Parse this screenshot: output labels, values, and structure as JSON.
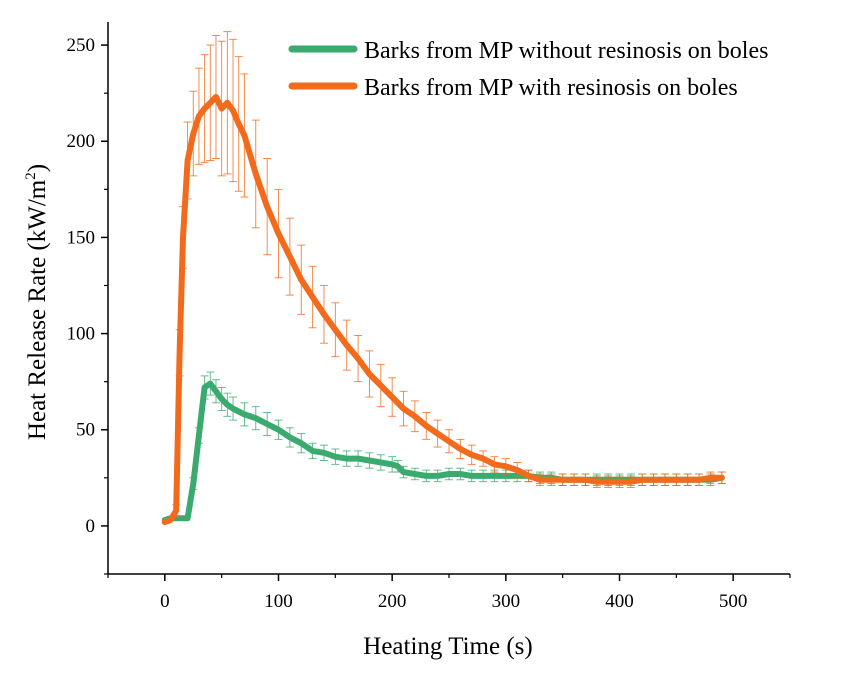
{
  "chart_data": {
    "type": "line",
    "title": "",
    "xlabel": "Heating Time (s)",
    "ylabel_main": "Heat Release Rate (kW/m",
    "ylabel_sup": "2",
    "ylabel_close": ")",
    "xlim": [
      -50,
      550
    ],
    "ylim": [
      -25,
      262
    ],
    "xticks": [
      0,
      100,
      200,
      300,
      400,
      500
    ],
    "xtick_labels": [
      "0",
      "100",
      "200",
      "300",
      "400",
      "500"
    ],
    "yticks": [
      0,
      50,
      100,
      150,
      200,
      250
    ],
    "ytick_labels": [
      "0",
      "50",
      "100",
      "150",
      "200",
      "250"
    ],
    "legend_position": "top-right",
    "series": [
      {
        "name": "Barks from MP without resinosis on boles",
        "color": "#3aaa6e",
        "x": [
          0,
          5,
          10,
          15,
          20,
          25,
          30,
          35,
          40,
          45,
          50,
          55,
          60,
          70,
          80,
          90,
          100,
          110,
          120,
          130,
          140,
          150,
          160,
          170,
          180,
          190,
          200,
          205,
          210,
          220,
          230,
          240,
          250,
          260,
          270,
          280,
          290,
          300,
          310,
          320,
          330,
          340,
          350,
          360,
          370,
          380,
          390,
          400,
          410,
          420,
          430,
          440,
          450,
          460,
          470,
          480,
          490
        ],
        "y": [
          3,
          4,
          4,
          4,
          4,
          22,
          47,
          72,
          74,
          70,
          66,
          63,
          61,
          58,
          56,
          53,
          50,
          46,
          43,
          39,
          38,
          36,
          35,
          35,
          34,
          33,
          32,
          31,
          28,
          27,
          26,
          26,
          27,
          27,
          26,
          26,
          26,
          26,
          26,
          26,
          25,
          25,
          24,
          24,
          24,
          24,
          24,
          24,
          24,
          24,
          24,
          24,
          24,
          24,
          24,
          24,
          25
        ],
        "err": [
          1,
          1,
          1,
          1,
          1,
          3,
          4,
          6,
          6,
          6,
          6,
          6,
          6,
          6,
          6,
          6,
          5,
          5,
          5,
          4,
          4,
          4,
          4,
          4,
          4,
          4,
          4,
          3,
          3,
          3,
          3,
          3,
          3,
          3,
          3,
          3,
          3,
          3,
          3,
          3,
          3,
          3,
          3,
          3,
          3,
          3,
          3,
          3,
          3,
          3,
          3,
          3,
          3,
          3,
          3,
          3,
          3
        ]
      },
      {
        "name": "Barks from MP with resinosis on boles",
        "color": "#f26a1b",
        "x": [
          0,
          5,
          10,
          13,
          16,
          20,
          25,
          30,
          35,
          40,
          45,
          50,
          55,
          60,
          65,
          70,
          80,
          90,
          100,
          110,
          120,
          130,
          140,
          150,
          160,
          170,
          180,
          190,
          200,
          210,
          220,
          230,
          240,
          250,
          260,
          270,
          280,
          290,
          300,
          310,
          320,
          330,
          340,
          350,
          360,
          370,
          380,
          390,
          400,
          410,
          420,
          430,
          440,
          450,
          460,
          470,
          480,
          490
        ],
        "y": [
          2,
          3,
          8,
          90,
          150,
          190,
          204,
          213,
          217,
          220,
          223,
          217,
          220,
          216,
          209,
          203,
          183,
          166,
          152,
          140,
          128,
          119,
          110,
          102,
          94,
          87,
          79,
          73,
          67,
          61,
          57,
          52,
          48,
          44,
          40,
          37,
          35,
          32,
          31,
          29,
          26,
          24,
          24,
          24,
          24,
          24,
          23,
          23,
          23,
          23,
          24,
          24,
          24,
          24,
          24,
          24,
          25,
          25
        ],
        "err": [
          1,
          1,
          3,
          12,
          16,
          20,
          22,
          25,
          28,
          30,
          32,
          35,
          37,
          37,
          35,
          32,
          28,
          25,
          23,
          20,
          18,
          16,
          15,
          14,
          13,
          12,
          12,
          11,
          10,
          9,
          8,
          7,
          7,
          6,
          5,
          5,
          4,
          4,
          4,
          4,
          3,
          3,
          3,
          3,
          3,
          3,
          3,
          3,
          3,
          3,
          3,
          3,
          3,
          3,
          3,
          3,
          3,
          3
        ]
      }
    ]
  }
}
